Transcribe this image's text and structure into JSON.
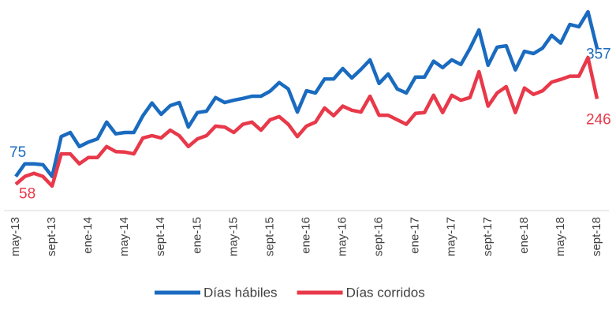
{
  "chart_data": {
    "type": "line",
    "categories": [
      "may-13",
      null,
      null,
      null,
      "sept-13",
      null,
      null,
      null,
      "ene-14",
      null,
      null,
      null,
      "may-14",
      null,
      null,
      null,
      "sept-14",
      null,
      null,
      null,
      "ene-15",
      null,
      null,
      null,
      "may-15",
      null,
      null,
      null,
      "sept-15",
      null,
      null,
      null,
      "ene-16",
      null,
      null,
      null,
      "may-16",
      null,
      null,
      null,
      "sept-16",
      null,
      null,
      null,
      "ene-17",
      null,
      null,
      null,
      "may-17",
      null,
      null,
      null,
      "sept-17",
      null,
      null,
      null,
      "ene-18",
      null,
      null,
      null,
      "may-18",
      null,
      null,
      null,
      "sept-18"
    ],
    "series": [
      {
        "name": "Días hábiles",
        "color": "#1a6bbf",
        "values": [
          75,
          103,
          103,
          101,
          75,
          163,
          172,
          141,
          151,
          158,
          195,
          169,
          172,
          172,
          209,
          237,
          212,
          231,
          238,
          184,
          216,
          219,
          249,
          238,
          243,
          247,
          252,
          252,
          263,
          282,
          268,
          217,
          264,
          259,
          290,
          290,
          313,
          292,
          311,
          332,
          280,
          301,
          268,
          259,
          294,
          294,
          329,
          315,
          332,
          322,
          357,
          398,
          320,
          360,
          363,
          310,
          351,
          346,
          358,
          386,
          369,
          410,
          405,
          438,
          357
        ]
      },
      {
        "name": "Días corridos",
        "color": "#e8394a",
        "values": [
          58,
          75,
          82,
          75,
          54,
          125,
          125,
          103,
          117,
          117,
          141,
          130,
          129,
          125,
          160,
          165,
          160,
          177,
          165,
          141,
          158,
          165,
          186,
          184,
          172,
          190,
          195,
          177,
          200,
          207,
          190,
          163,
          186,
          195,
          226,
          209,
          230,
          221,
          217,
          252,
          210,
          210,
          200,
          190,
          214,
          216,
          254,
          216,
          254,
          243,
          249,
          306,
          230,
          259,
          273,
          216,
          270,
          256,
          264,
          283,
          289,
          296,
          296,
          337,
          246
        ]
      }
    ],
    "ylim": [
      0,
      450
    ],
    "grid": false,
    "legend": "bottom"
  }
}
